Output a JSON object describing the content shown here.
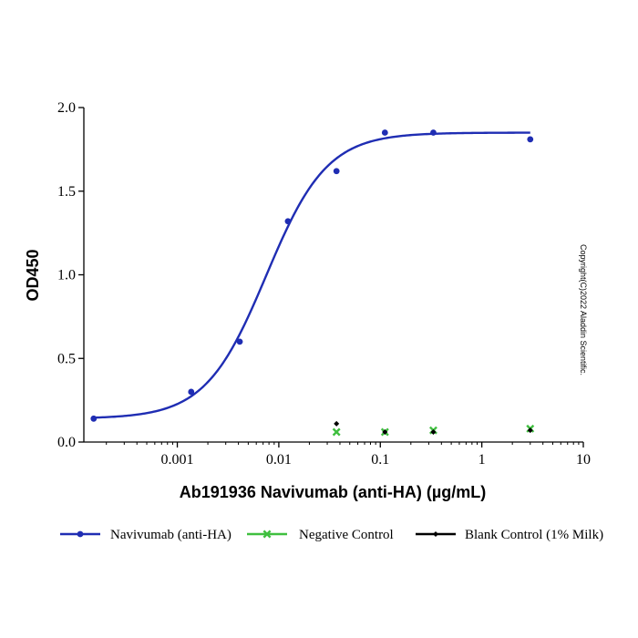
{
  "chart_data": {
    "type": "scatter",
    "title": "",
    "xlabel": "Ab191936 Navivumab (anti-HA) (µg/mL)",
    "ylabel": "OD450",
    "x_scale": "log",
    "xlim": [
      0.00012,
      10
    ],
    "ylim": [
      0,
      2.0
    ],
    "x_ticks": [
      0.001,
      0.01,
      0.1,
      1,
      10
    ],
    "x_tick_labels": [
      "0.001",
      "0.01",
      "0.1",
      "1",
      "10"
    ],
    "y_ticks": [
      0,
      0.5,
      1.0,
      1.5,
      2.0
    ],
    "y_tick_labels": [
      "0.0",
      "0.5",
      "1.0",
      "1.5",
      "2.0"
    ],
    "grid": false,
    "legend_position": "bottom",
    "series": [
      {
        "name": "Navivumab (anti-HA)",
        "color": "#1f2db3",
        "marker": "circle",
        "fit_curve": true,
        "x": [
          0.00015,
          0.00137,
          0.00412,
          0.0123,
          0.037,
          0.111,
          0.333,
          3.0
        ],
        "y": [
          0.14,
          0.3,
          0.6,
          1.32,
          1.62,
          1.85,
          1.85,
          1.81
        ]
      },
      {
        "name": "Negative Control",
        "color": "#3fbf3f",
        "marker": "x",
        "fit_curve": false,
        "x": [
          0.037,
          0.111,
          0.333,
          3.0
        ],
        "y": [
          0.06,
          0.06,
          0.07,
          0.08
        ]
      },
      {
        "name": "Blank Control (1% Milk)",
        "color": "#000000",
        "marker": "diamond",
        "fit_curve": false,
        "x": [
          0.037,
          0.111,
          0.333,
          3.0
        ],
        "y": [
          0.11,
          0.06,
          0.06,
          0.07
        ]
      }
    ],
    "annotations": [
      "Copyright(C)2022 Aladdin Scientific."
    ]
  }
}
